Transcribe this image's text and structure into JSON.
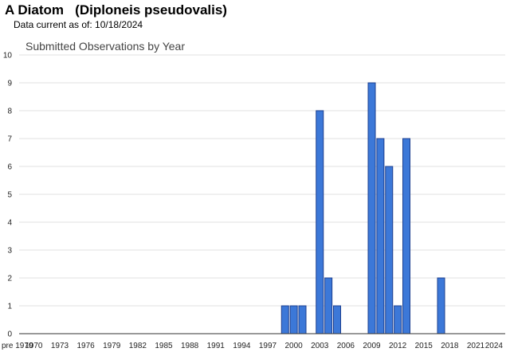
{
  "header": {
    "species_title": "A Diatom   (Diploneis pseudovalis)",
    "data_current_label": "Data current as of: 10/18/2024"
  },
  "colors": {
    "bar_fill": "#3c78d8",
    "bar_stroke": "#1c3f8f",
    "grid": "#e0e0e0",
    "axis": "#333333"
  },
  "chart_data": {
    "type": "bar",
    "title": "Submitted Observations by Year",
    "xlabel": "",
    "ylabel": "",
    "ylim": [
      0,
      10
    ],
    "y_ticks": [
      0,
      1,
      2,
      3,
      4,
      5,
      6,
      7,
      8,
      9,
      10
    ],
    "grid": true,
    "legend": "none",
    "categories": [
      "pre 1970",
      "1970",
      "1971",
      "1972",
      "1973",
      "1974",
      "1975",
      "1976",
      "1977",
      "1978",
      "1979",
      "1980",
      "1981",
      "1982",
      "1983",
      "1984",
      "1985",
      "1986",
      "1987",
      "1988",
      "1989",
      "1990",
      "1991",
      "1992",
      "1993",
      "1994",
      "1995",
      "1996",
      "1997",
      "1998",
      "1999",
      "2000",
      "2001",
      "2002",
      "2003",
      "2004",
      "2005",
      "2006",
      "2007",
      "2008",
      "2009",
      "2010",
      "2011",
      "2012",
      "2013",
      "2014",
      "2015",
      "2016",
      "2017",
      "2018",
      "2019",
      "2020",
      "2021",
      "2022",
      "2023",
      "2024"
    ],
    "x_tick_labels": [
      "pre 1970",
      "1970",
      "1973",
      "1976",
      "1979",
      "1982",
      "1985",
      "1988",
      "1991",
      "1994",
      "1997",
      "2000",
      "2003",
      "2006",
      "2009",
      "2012",
      "2015",
      "2018",
      "2021",
      "2024"
    ],
    "values": [
      0,
      0,
      0,
      0,
      0,
      0,
      0,
      0,
      0,
      0,
      0,
      0,
      0,
      0,
      0,
      0,
      0,
      0,
      0,
      0,
      0,
      0,
      0,
      0,
      0,
      0,
      0,
      0,
      0,
      0,
      1,
      1,
      1,
      0,
      8,
      2,
      1,
      0,
      0,
      0,
      9,
      7,
      6,
      1,
      7,
      0,
      0,
      0,
      2,
      0,
      0,
      0,
      0,
      0,
      0,
      0
    ]
  }
}
